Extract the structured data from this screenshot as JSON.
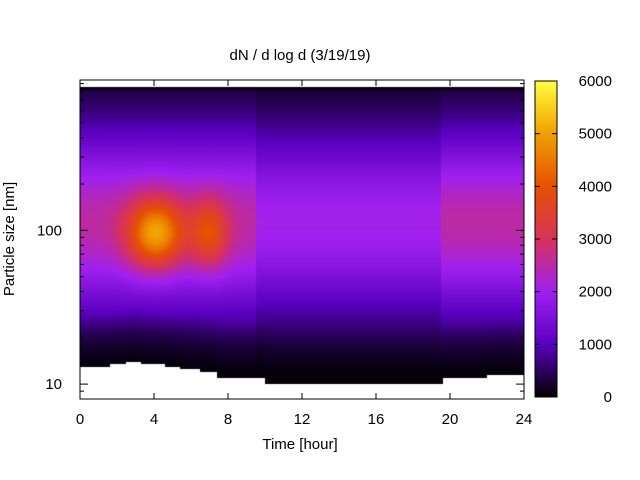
{
  "chart_data": {
    "type": "heatmap",
    "title": "dN / d log d (3/19/19)",
    "xlabel": "Time [hour]",
    "ylabel": "Particle size [nm]",
    "xlim": [
      0,
      24
    ],
    "ylim": [
      8,
      950
    ],
    "yscale": "log",
    "x_ticks": [
      0,
      4,
      8,
      12,
      16,
      20,
      24
    ],
    "x_tick_labels": [
      "0",
      "4",
      "8",
      "12",
      "16",
      "20",
      "24"
    ],
    "y_ticks": [
      10,
      100
    ],
    "y_tick_labels": [
      "10",
      "100"
    ],
    "colorbar": {
      "range": [
        0,
        6000
      ],
      "ticks": [
        0,
        1000,
        2000,
        3000,
        4000,
        5000,
        6000
      ],
      "tick_labels": [
        "0",
        "1000",
        "2000",
        "3000",
        "4000",
        "5000",
        "6000"
      ],
      "colors": [
        "#000000",
        "#5a00c0",
        "#a020f0",
        "#d7325a",
        "#e65000",
        "#f0a000",
        "#ffff40"
      ]
    },
    "size_top_nm": 800,
    "min_size_nm": {
      "time": [
        0,
        1.6,
        2.5,
        3.3,
        4.6,
        5.4,
        6.5,
        7.4,
        10,
        16,
        19.6,
        20.4,
        22,
        24
      ],
      "size": [
        13,
        13.5,
        14,
        13.5,
        13,
        12.5,
        12,
        11,
        10,
        10,
        11,
        11,
        11.5,
        12
      ]
    },
    "features": [
      {
        "time": 4.1,
        "size": 95,
        "value": 5000
      },
      {
        "time": 7.0,
        "size": 95,
        "value": 3900
      }
    ]
  }
}
